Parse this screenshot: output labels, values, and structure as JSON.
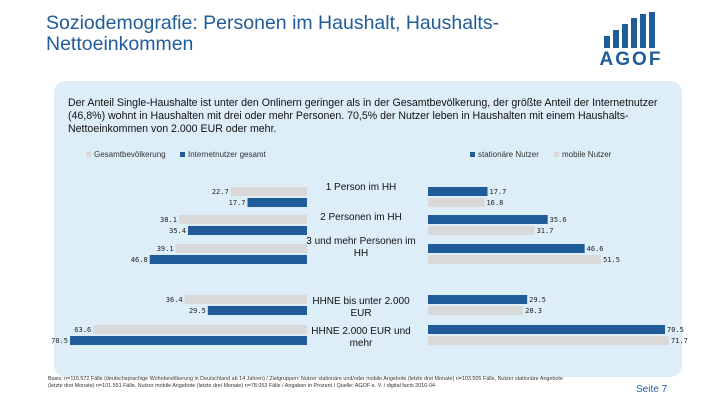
{
  "header": {
    "title": "Soziodemografie: Personen im Haushalt, Haushalts-Nettoeinkommen",
    "logo_text": "AGOF"
  },
  "intro": "Der Anteil Single-Haushalte ist unter den Onlinern geringer als in der Gesamtbevölkerung, der größte Anteil der Internetnutzer (46,8%) wohnt in Haushalten mit drei oder mehr Personen. 70,5% der Nutzer leben in Haushalten mit einem Haushalts-Nettoeinkommen von 2.000 EUR oder mehr.",
  "colors": {
    "accent": "#1f5c99",
    "gesamt": "#d9d9d9",
    "internet": "#1f5c99",
    "stationaer": "#1f5c99",
    "mobil": "#d9d9d9",
    "panel": "#ddeef8"
  },
  "chart_data": {
    "type": "bar",
    "orientation": "horizontal-butterfly",
    "categories": [
      "1 Person im HH",
      "2 Personen im HH",
      "3 und mehr Personen im HH",
      "HHNE bis unter 2.000 EUR",
      "HHNE 2.000 EUR und mehr"
    ],
    "left_series": [
      {
        "name": "Gesamtbevölkerung",
        "values": [
          22.7,
          38.1,
          39.1,
          36.4,
          63.6
        ],
        "labels": [
          "22.7",
          "38.1",
          "39.1",
          "36.4",
          "63.6"
        ]
      },
      {
        "name": "Internetnutzer gesamt",
        "values": [
          17.7,
          35.4,
          46.8,
          29.5,
          70.5
        ],
        "labels": [
          "17.7",
          "35.4",
          "46.8",
          "29.5",
          "70.5"
        ]
      }
    ],
    "right_series": [
      {
        "name": "stationäre Nutzer",
        "values": [
          17.7,
          35.6,
          46.6,
          29.5,
          70.5
        ],
        "labels": [
          "17.7",
          "35.6",
          "46.6",
          "29.5",
          "70.5"
        ]
      },
      {
        "name": "mobile Nutzer",
        "values": [
          16.8,
          31.7,
          51.5,
          28.3,
          71.7
        ],
        "labels": [
          "16.8",
          "31.7",
          "51.5",
          "28.3",
          "71.7"
        ]
      }
    ],
    "xlim": [
      0,
      75
    ]
  },
  "footer": "Basis: n=116.572 Fälle (deutschsprachige Wohnbevölkerung in Deutschland ab 14 Jahren) / Zielgruppen: Nutzer stationäre und/oder mobile Angebote (letzte drei Monate) n=103.505 Fälle, Nutzer stationäre Angebote (letzte drei Monate) n=101.551 Fälle, Nutzer mobile Angebote (letzte drei Monate) n=78.053 Fälle / Angaben in Prozent / Quelle: AGOF e. V. / digital facts 2016-04",
  "page_number": "Seite 7"
}
